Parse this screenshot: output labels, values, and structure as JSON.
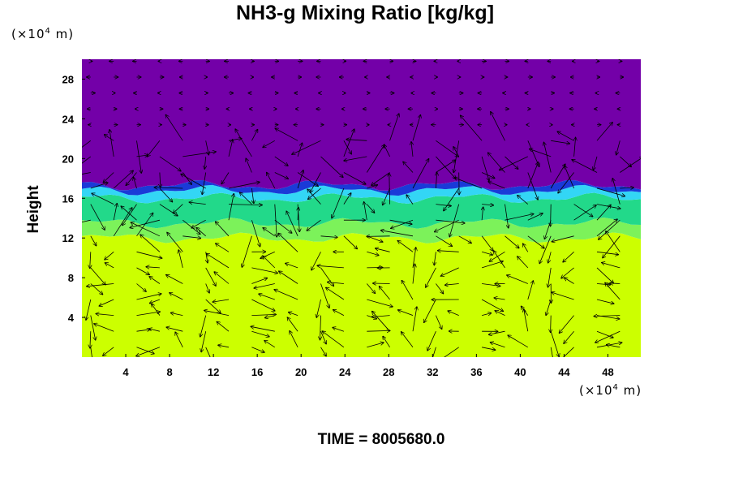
{
  "chart_data": {
    "type": "heatmap",
    "title": "NH3-g Mixing Ratio [kg/kg]",
    "ylabel": "Height",
    "xlabel": "",
    "y_unit": {
      "prefix": "(×10",
      "exp": "4",
      "suffix": " m)"
    },
    "x_unit": {
      "prefix": "(×10",
      "exp": "4",
      "suffix": " m)"
    },
    "xlim": [
      0,
      51
    ],
    "ylim": [
      0,
      30
    ],
    "x_ticks": [
      4,
      8,
      12,
      16,
      20,
      24,
      28,
      32,
      36,
      40,
      44,
      48
    ],
    "y_ticks": [
      4,
      8,
      12,
      16,
      20,
      24,
      28
    ],
    "x_tick_labels": [
      "4",
      "8",
      "12",
      "16",
      "20",
      "24",
      "28",
      "32",
      "36",
      "40",
      "44",
      "48"
    ],
    "y_tick_labels": [
      "4",
      "8",
      "12",
      "16",
      "20",
      "24",
      "28"
    ],
    "layers": [
      {
        "from": 0,
        "to": 12,
        "color": "#ccff00",
        "name": "lower"
      },
      {
        "from": 12,
        "to": 13.5,
        "color": "#7cf25a",
        "name": "transition"
      },
      {
        "from": 13.5,
        "to": 16,
        "color": "#22d98a",
        "name": "green"
      },
      {
        "from": 16,
        "to": 16.8,
        "color": "#33d6f5",
        "name": "cyan"
      },
      {
        "from": 16.8,
        "to": 17.3,
        "color": "#1a3ad8",
        "name": "blue"
      },
      {
        "from": 17.3,
        "to": 30,
        "color": "#7300a8",
        "name": "upper"
      }
    ],
    "overlay": "wind vectors",
    "grid": false,
    "time_label": "TIME = 8005680.0"
  }
}
